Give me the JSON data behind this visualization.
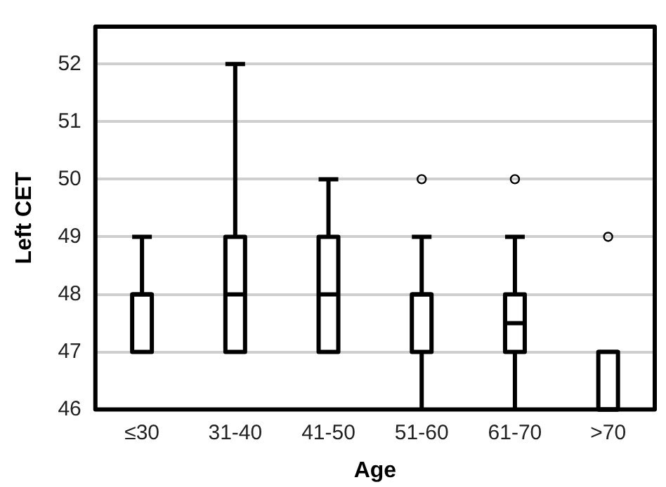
{
  "chart_data": {
    "type": "box",
    "xlabel": "Age",
    "ylabel": "Left CET",
    "categories": [
      "≤30",
      "31-40",
      "41-50",
      "51-60",
      "61-70",
      ">70"
    ],
    "boxes": [
      {
        "low": 47,
        "q1": 47,
        "median": 48,
        "q3": 48,
        "high": 49
      },
      {
        "low": 47,
        "q1": 47,
        "median": 48,
        "q3": 49,
        "high": 52
      },
      {
        "low": 47,
        "q1": 47,
        "median": 48,
        "q3": 49,
        "high": 50
      },
      {
        "low": 46,
        "q1": 47,
        "median": 48,
        "q3": 48,
        "high": 49,
        "outliers": [
          50
        ]
      },
      {
        "low": 46,
        "q1": 47,
        "median": 47.5,
        "q3": 48,
        "high": 49,
        "outliers": [
          50
        ]
      },
      {
        "low": 46,
        "q1": 46,
        "median": 46,
        "q3": 47,
        "high": 47,
        "outliers": [
          49
        ]
      }
    ],
    "ylim": [
      46,
      52.65
    ],
    "yticks": [
      46,
      47,
      48,
      49,
      50,
      51,
      52
    ],
    "grid": "y",
    "legend": false
  }
}
